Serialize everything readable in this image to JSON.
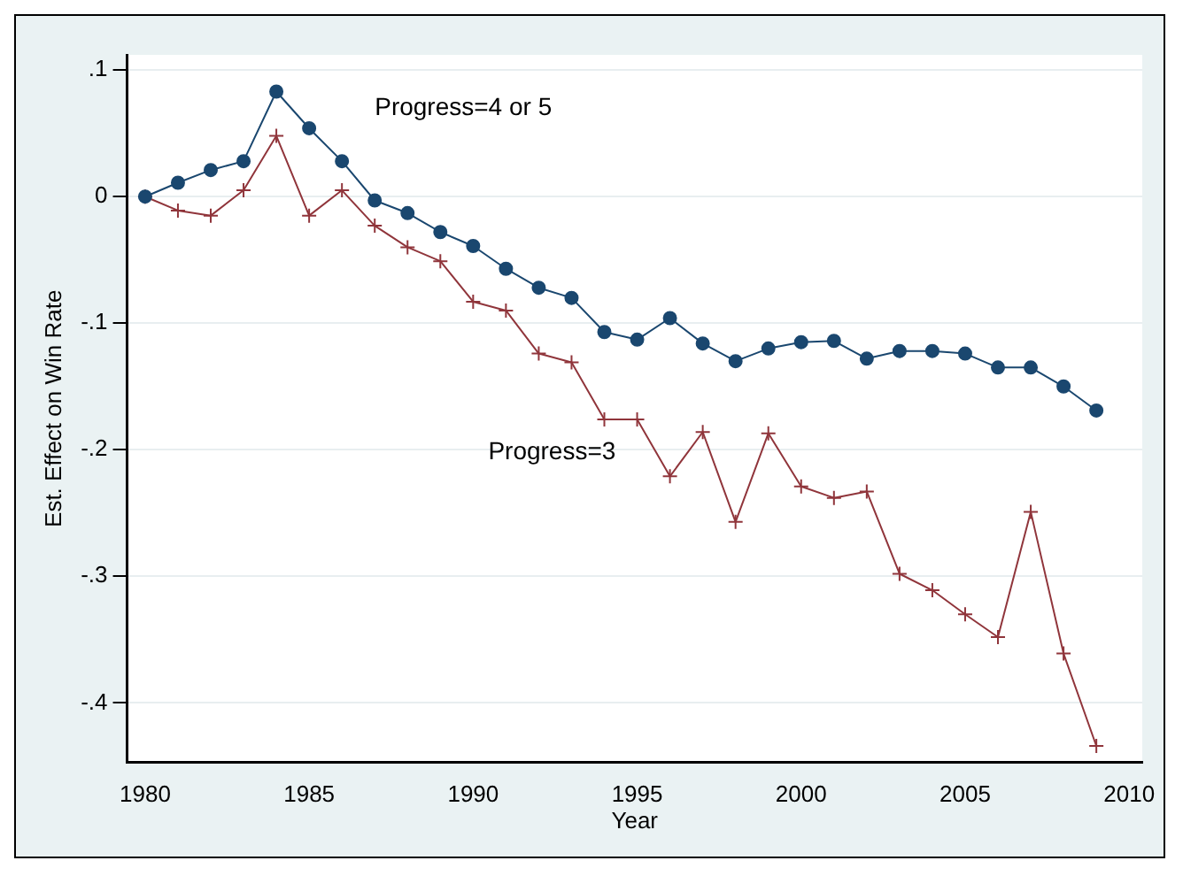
{
  "chart_data": {
    "type": "line",
    "xlabel": "Year",
    "ylabel": "Est. Effect on Win Rate",
    "x": [
      1980,
      1981,
      1982,
      1983,
      1984,
      1985,
      1986,
      1987,
      1988,
      1989,
      1990,
      1991,
      1992,
      1993,
      1994,
      1995,
      1996,
      1997,
      1998,
      1999,
      2000,
      2001,
      2002,
      2003,
      2004,
      2005,
      2006,
      2007,
      2008,
      2009
    ],
    "series": [
      {
        "name": "Progress=4 or 5",
        "color": "#1a476f",
        "marker": "circle",
        "values": [
          0,
          0.011,
          0.021,
          0.028,
          0.083,
          0.054,
          0.028,
          -0.003,
          -0.013,
          -0.028,
          -0.039,
          -0.057,
          -0.072,
          -0.08,
          -0.107,
          -0.113,
          -0.096,
          -0.116,
          -0.13,
          -0.12,
          -0.115,
          -0.114,
          -0.128,
          -0.122,
          -0.122,
          -0.124,
          -0.135,
          -0.135,
          -0.15,
          -0.169
        ]
      },
      {
        "name": "Progress=3",
        "color": "#90353b",
        "marker": "cross",
        "values": [
          0,
          -0.011,
          -0.015,
          0.005,
          0.048,
          -0.015,
          0.005,
          -0.023,
          -0.04,
          -0.051,
          -0.083,
          -0.09,
          -0.124,
          -0.131,
          -0.176,
          -0.176,
          -0.221,
          -0.186,
          -0.257,
          -0.187,
          -0.229,
          -0.238,
          -0.233,
          -0.298,
          -0.311,
          -0.33,
          -0.348,
          -0.249,
          -0.361,
          -0.434
        ]
      }
    ],
    "xlim": [
      1979.45,
      2010.4
    ],
    "xticks": [
      1980,
      1985,
      1990,
      1995,
      2000,
      2005,
      2010
    ],
    "ylim": [
      -0.447,
      0.112
    ],
    "yticks": [
      {
        "value": -0.4,
        "label": "-.4"
      },
      {
        "value": -0.3,
        "label": "-.3"
      },
      {
        "value": -0.2,
        "label": "-.2"
      },
      {
        "value": -0.1,
        "label": "-.1"
      },
      {
        "value": 0,
        "label": "0"
      },
      {
        "value": 0.1,
        "label": ".1"
      }
    ],
    "grid": "y",
    "legend": false,
    "line_style": "solid"
  }
}
